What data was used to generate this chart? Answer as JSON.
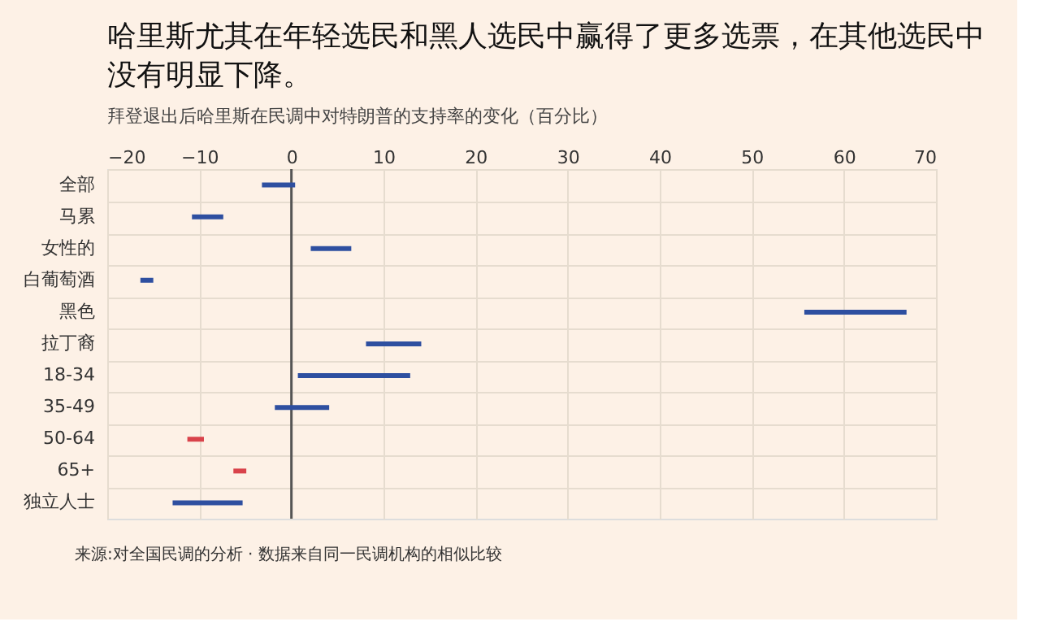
{
  "chart_data": {
    "type": "bar",
    "orientation": "horizontal",
    "title": "哈里斯尤其在年轻选民和黑人选民中赢得了更多选票，在其他选民中没有明显下降。",
    "subtitle": "拜登退出后哈里斯在民调中对特朗普的支持率的变化（百分比）",
    "categories": [
      "全部",
      "马累",
      "女性的",
      "白葡萄酒",
      "黑色",
      "拉丁裔",
      "18-34",
      "35-49",
      "50-64",
      "65+",
      "独立人士"
    ],
    "base": [
      -3.2,
      -10.8,
      2.1,
      -16.4,
      55.7,
      8.1,
      0.7,
      -1.8,
      -9.5,
      -4.9,
      -12.9
    ],
    "values": [
      3.6,
      3.4,
      4.4,
      1.4,
      11.1,
      6.0,
      12.2,
      5.9,
      -1.8,
      -1.4,
      7.6
    ],
    "colors": [
      "#2e4fa0",
      "#2e4fa0",
      "#2e4fa0",
      "#2e4fa0",
      "#2e4fa0",
      "#2e4fa0",
      "#2e4fa0",
      "#2e4fa0",
      "#d9434b",
      "#d9434b",
      "#2e4fa0"
    ],
    "xlim": [
      -20,
      70
    ],
    "xticks": [
      -20,
      -10,
      0,
      10,
      20,
      30,
      40,
      50,
      60,
      70
    ],
    "grid": true,
    "ref_lines": [
      {
        "axis": "x",
        "value": 0,
        "color": "#555555"
      }
    ],
    "annotations": [
      "来源:对全国民调的分析 · 数据来自同一民调机构的相似比较"
    ]
  }
}
